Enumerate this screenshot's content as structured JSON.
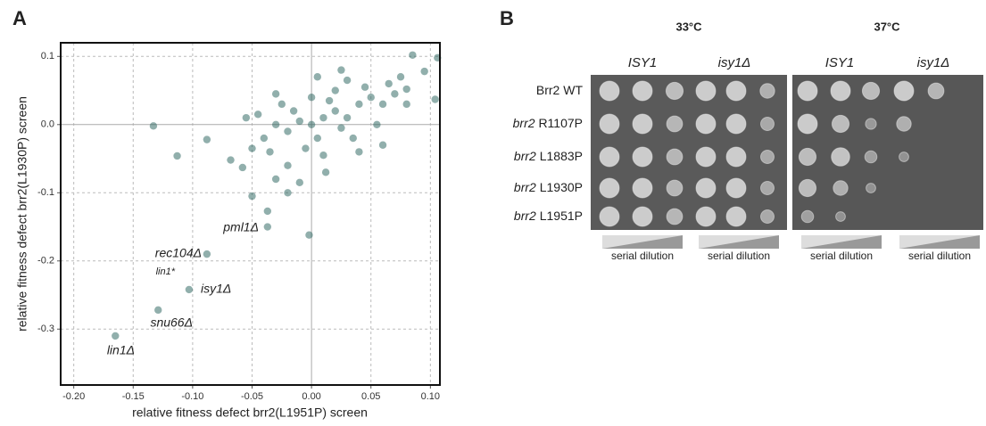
{
  "chart_data": {
    "type": "scatter",
    "panel_label": "A",
    "x_label": "relative fitness defect brr2(L1951P) screen",
    "y_label": "relative fitness defect brr2(L1930P) screen",
    "xlim": [
      -0.211,
      0.108
    ],
    "ylim": [
      -0.382,
      0.12
    ],
    "xticks": [
      {
        "value": -0.2,
        "label": "-0.20"
      },
      -0.15,
      {
        "value": -0.1,
        "label": "-0.10"
      },
      -0.05,
      {
        "value": 0,
        "label": "0.00"
      },
      0.05,
      {
        "value": 0.1,
        "label": "0.10"
      }
    ],
    "yticks": [
      -0.3,
      -0.2,
      -0.1,
      {
        "value": 0,
        "label": "0.0"
      },
      0.1
    ],
    "grid": true,
    "color": "#245f5a",
    "x": [
      0,
      0.01,
      -0.01,
      0.02,
      -0.02,
      0.03,
      0.005,
      -0.015,
      0.025,
      0.04,
      -0.03,
      0.015,
      -0.005,
      0.035,
      0.05,
      -0.04,
      0.06,
      0.045,
      0.02,
      -0.025,
      0.01,
      -0.035,
      0.055,
      0.065,
      0.03,
      -0.045,
      0.07,
      -0.05,
      0,
      0.04,
      0.075,
      -0.02,
      0.012,
      -0.01,
      0.005,
      0.08,
      -0.055,
      0.025,
      0.06,
      -0.03,
      -0.133,
      -0.113,
      -0.088,
      -0.068,
      -0.058,
      -0.05,
      -0.037,
      -0.002,
      -0.02,
      -0.03,
      0.085,
      0.106,
      0.095,
      0.08,
      0.104,
      -0.037,
      -0.088,
      -0.103,
      -0.129,
      -0.165
    ],
    "values": [
      0,
      0.01,
      0.005,
      0.02,
      -0.01,
      0.01,
      -0.02,
      0.02,
      -0.005,
      0.03,
      0,
      0.035,
      -0.035,
      -0.02,
      0.04,
      -0.02,
      0.03,
      0.055,
      0.05,
      0.03,
      -0.045,
      -0.04,
      0,
      0.06,
      0.065,
      0.015,
      0.045,
      -0.035,
      0.04,
      -0.04,
      0.07,
      -0.06,
      -0.07,
      -0.085,
      0.07,
      0.03,
      0.01,
      0.08,
      -0.03,
      0.045,
      -0.002,
      -0.046,
      -0.022,
      -0.052,
      -0.063,
      -0.105,
      -0.127,
      -0.162,
      -0.1,
      -0.08,
      0.102,
      0.098,
      0.078,
      0.052,
      0.037,
      -0.15,
      -0.19,
      -0.242,
      -0.272,
      -0.31
    ],
    "annotations": [
      "pml1Δ",
      "rec104Δ",
      "lin1*",
      "isy1Δ",
      "snu66Δ",
      "lin1Δ"
    ]
  },
  "panel_b": {
    "panel_label": "B",
    "temperatures": [
      "33°C",
      "37°C"
    ],
    "genotypes": [
      "ISY1",
      "isy1Δ",
      "ISY1",
      "isy1Δ"
    ],
    "strains": [
      {
        "gene": "Brr2",
        "allele": "WT"
      },
      {
        "gene": "brr2",
        "allele": "R1107P"
      },
      {
        "gene": "brr2",
        "allele": "L1883P"
      },
      {
        "gene": "brr2",
        "allele": "L1930P"
      },
      {
        "gene": "brr2",
        "allele": "L1951P"
      }
    ],
    "dilution_labels": [
      "serial dilution",
      "serial dilution",
      "serial dilution",
      "serial dilution"
    ]
  }
}
